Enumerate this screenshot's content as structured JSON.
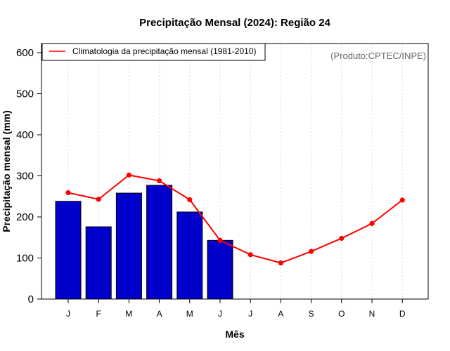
{
  "chart_data": {
    "type": "bar",
    "title": "Precipitação Mensal (2024): Região 24",
    "xlabel": "Mês",
    "ylabel": "Precipitação mensal (mm)",
    "ylim": [
      0,
      600
    ],
    "yticks": [
      0,
      100,
      200,
      300,
      400,
      500,
      600
    ],
    "categories": [
      "J",
      "F",
      "M",
      "A",
      "M",
      "J",
      "J",
      "A",
      "S",
      "O",
      "N",
      "D"
    ],
    "series": [
      {
        "name": "2024",
        "kind": "bar",
        "color": "#0000CC",
        "values": [
          238,
          176,
          258,
          277,
          212,
          143,
          null,
          null,
          null,
          null,
          null,
          null
        ]
      },
      {
        "name": "Climatologia da precipitação mensal (1981-2010)",
        "kind": "line",
        "color": "#FF0000",
        "values": [
          259,
          243,
          302,
          288,
          242,
          143,
          108,
          88,
          116,
          148,
          184,
          241
        ]
      }
    ],
    "legend": {
      "entries": [
        "Climatologia da precipitação mensal (1981-2010)"
      ],
      "position": "top-left"
    },
    "grid": {
      "vertical": true,
      "horizontal": false,
      "color": "#d9d9d9"
    },
    "source_text": "(Produto:CPTEC/INPE)"
  }
}
